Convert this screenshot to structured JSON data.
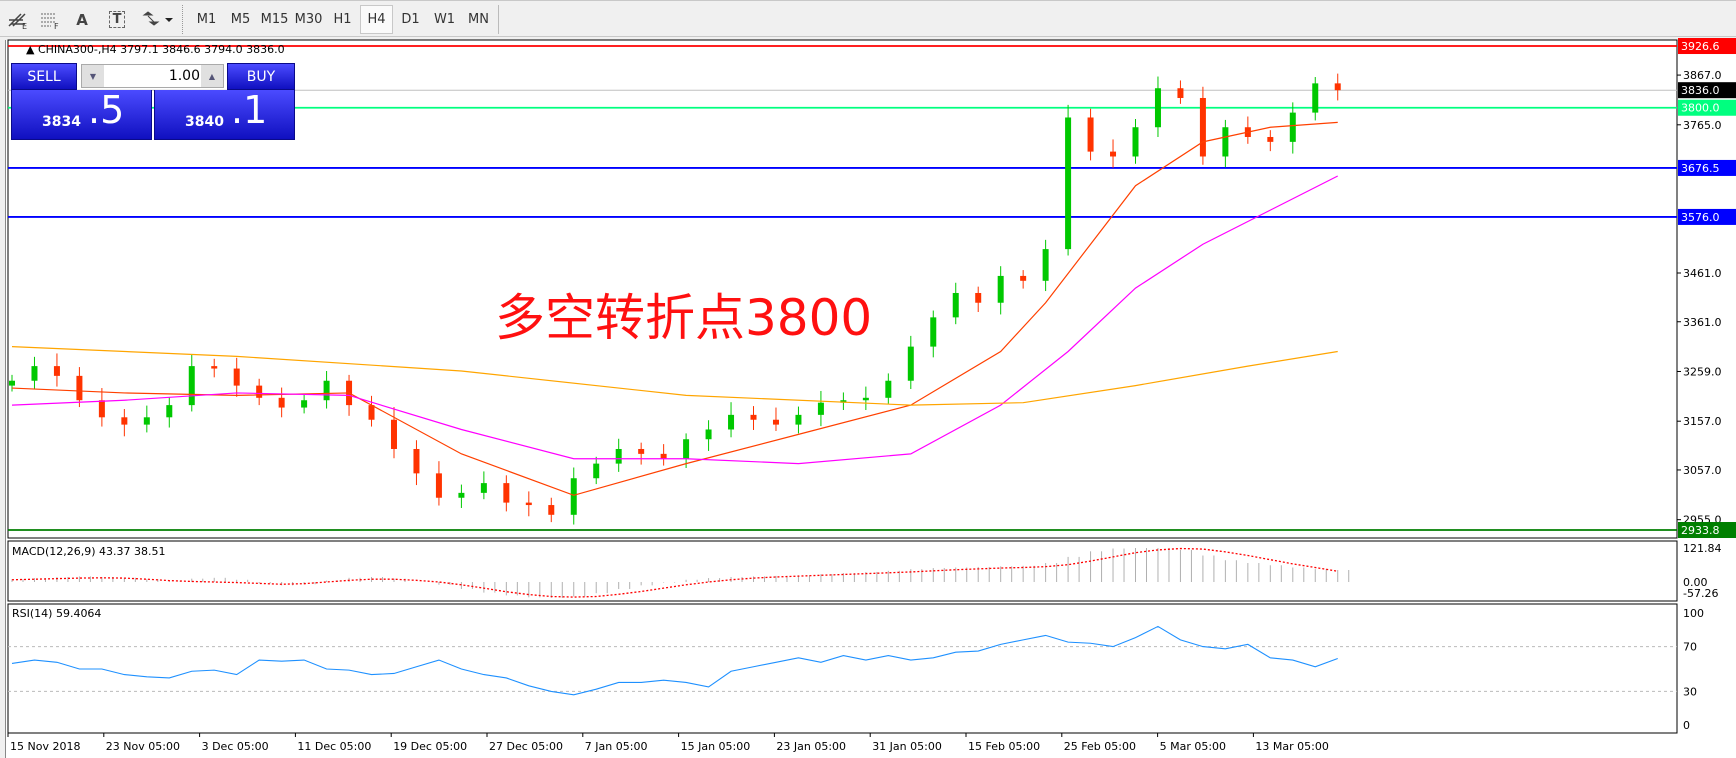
{
  "toolbar": {
    "tools": [
      {
        "name": "fibonacci-expansion-icon"
      },
      {
        "name": "fibonacci-fan-icon"
      },
      {
        "name": "text-icon",
        "label": "A"
      },
      {
        "name": "text-label-icon",
        "label": "T"
      },
      {
        "name": "arrows-icon"
      }
    ],
    "timeframes": [
      "M1",
      "M5",
      "M15",
      "M30",
      "H1",
      "H4",
      "D1",
      "W1",
      "MN"
    ],
    "active_timeframe": "H4"
  },
  "chart": {
    "header": "CHINA300-,H4  3797.1 3846.6 3794.0 3836.0",
    "symbol": "CHINA300-",
    "period": "H4",
    "ohlc": [
      3797.1,
      3846.6,
      3794.0,
      3836.0
    ]
  },
  "trade_panel": {
    "sell_label": "SELL",
    "buy_label": "BUY",
    "volume": "1.00",
    "sell_big": "3834",
    "sell_small": ".5",
    "buy_big": "3840",
    "buy_small": ".1"
  },
  "annotation": "多空转折点3800",
  "colors": {
    "up": "#00c800",
    "down": "#ff3300",
    "ma_short": "#ff4000",
    "ma_mid": "#ff00ff",
    "ma_long": "#ffa500",
    "macd_signal": "#ff0000",
    "rsi": "#1e90ff"
  },
  "chart_data": [
    {
      "type": "candlestick",
      "ylim": [
        2920,
        3945
      ],
      "price_ticks": [
        "3867.0",
        "3765.0",
        "3461.0",
        "3361.0",
        "3259.0",
        "3157.0",
        "3057.0",
        "2955.0"
      ],
      "closes": [
        3240,
        3270,
        3250,
        3200,
        3165,
        3150,
        3165,
        3190,
        3270,
        3265,
        3230,
        3205,
        3185,
        3200,
        3240,
        3190,
        3160,
        3100,
        3050,
        3000,
        3010,
        3030,
        2990,
        2985,
        2965,
        3040,
        3070,
        3100,
        3090,
        3080,
        3120,
        3140,
        3170,
        3160,
        3150,
        3170,
        3195,
        3200,
        3205,
        3240,
        3310,
        3370,
        3420,
        3400,
        3455,
        3445,
        3510,
        3780,
        3710,
        3700,
        3760,
        3840,
        3820,
        3700,
        3760,
        3740,
        3730,
        3790,
        3850,
        3836
      ],
      "ma_short": [
        [
          0,
          3225
        ],
        [
          5,
          3215
        ],
        [
          10,
          3210
        ],
        [
          15,
          3215
        ],
        [
          20,
          3090
        ],
        [
          25,
          3005
        ],
        [
          30,
          3070
        ],
        [
          35,
          3130
        ],
        [
          40,
          3190
        ],
        [
          44,
          3300
        ],
        [
          46,
          3400
        ],
        [
          48,
          3520
        ],
        [
          50,
          3640
        ],
        [
          53,
          3730
        ],
        [
          56,
          3760
        ],
        [
          59,
          3770
        ]
      ],
      "ma_mid": [
        [
          0,
          3190
        ],
        [
          5,
          3200
        ],
        [
          10,
          3215
        ],
        [
          15,
          3210
        ],
        [
          20,
          3140
        ],
        [
          25,
          3080
        ],
        [
          30,
          3080
        ],
        [
          35,
          3070
        ],
        [
          40,
          3090
        ],
        [
          44,
          3190
        ],
        [
          47,
          3300
        ],
        [
          50,
          3430
        ],
        [
          53,
          3520
        ],
        [
          56,
          3590
        ],
        [
          59,
          3660
        ]
      ],
      "ma_long": [
        [
          0,
          3310
        ],
        [
          10,
          3290
        ],
        [
          20,
          3260
        ],
        [
          30,
          3210
        ],
        [
          40,
          3190
        ],
        [
          45,
          3195
        ],
        [
          50,
          3230
        ],
        [
          55,
          3270
        ],
        [
          59,
          3300
        ]
      ],
      "hlines": [
        {
          "value": "3926.6",
          "color": "#ff0000"
        },
        {
          "value": "3836.0",
          "color": "#000000",
          "kind": "bid"
        },
        {
          "value": "3800.0",
          "color": "#00ff7f"
        },
        {
          "value": "3676.5",
          "color": "#0000ff"
        },
        {
          "value": "3576.0",
          "color": "#0000ff"
        },
        {
          "value": "2933.8",
          "color": "#007f00"
        }
      ],
      "time_labels": [
        "15 Nov 2018",
        "23 Nov 05:00",
        "3 Dec 05:00",
        "11 Dec 05:00",
        "19 Dec 05:00",
        "27 Dec 05:00",
        "7 Jan 05:00",
        "15 Jan 05:00",
        "23 Jan 05:00",
        "31 Jan 05:00",
        "15 Feb 05:00",
        "25 Feb 05:00",
        "5 Mar 05:00",
        "13 Mar 05:00"
      ]
    },
    {
      "type": "bar",
      "title": "MACD(12,26,9) 43.37 38.51",
      "ylim": [
        -57.26,
        121.84
      ],
      "ticks": [
        "121.84",
        "0.00",
        "-57.26"
      ],
      "histogram": [
        10,
        14,
        18,
        20,
        18,
        15,
        10,
        5,
        12,
        15,
        8,
        -5,
        -12,
        -8,
        5,
        15,
        18,
        12,
        0,
        -10,
        -25,
        -38,
        -48,
        -55,
        -57,
        -52,
        -40,
        -25,
        -12,
        -2,
        8,
        14,
        18,
        20,
        22,
        24,
        28,
        32,
        36,
        40,
        46,
        50,
        52,
        54,
        56,
        58,
        68,
        90,
        110,
        120,
        122,
        122,
        115,
        95,
        78,
        68,
        60,
        52,
        46,
        43
      ],
      "signal": [
        8,
        10,
        12,
        14,
        15,
        14,
        10,
        5,
        2,
        0,
        -2,
        -5,
        -8,
        -6,
        0,
        6,
        10,
        10,
        6,
        0,
        -10,
        -22,
        -35,
        -45,
        -52,
        -54,
        -52,
        -44,
        -34,
        -22,
        -10,
        0,
        8,
        14,
        18,
        21,
        24,
        27,
        30,
        33,
        36,
        40,
        44,
        47,
        50,
        52,
        55,
        62,
        75,
        90,
        105,
        115,
        120,
        118,
        108,
        95,
        80,
        65,
        52,
        38.51
      ]
    },
    {
      "type": "line",
      "title": "RSI(14) 59.4064",
      "ylim": [
        0,
        100
      ],
      "ticks": [
        "100",
        "70",
        "30",
        "0"
      ],
      "levels": [
        70,
        30
      ],
      "values": [
        55,
        58,
        56,
        50,
        50,
        45,
        43,
        42,
        48,
        49,
        45,
        58,
        57,
        58,
        50,
        49,
        45,
        46,
        52,
        58,
        50,
        45,
        42,
        35,
        30,
        27,
        32,
        38,
        38,
        40,
        38,
        34,
        48,
        52,
        56,
        60,
        56,
        62,
        58,
        62,
        58,
        60,
        65,
        66,
        72,
        76,
        80,
        74,
        73,
        70,
        78,
        88,
        76,
        70,
        68,
        72,
        60,
        58,
        52,
        59.4
      ]
    }
  ]
}
